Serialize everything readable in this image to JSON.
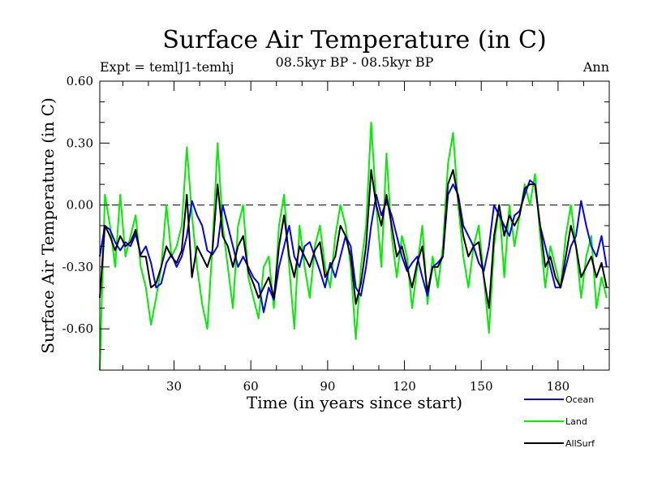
{
  "chart_data": {
    "type": "line",
    "title": "Surface Air Temperature (in C)",
    "subtitle_left": "Expt = temlJ1-temhj",
    "subtitle_center": "08.5kyr BP - 08.5kyr BP",
    "subtitle_right": "Ann",
    "xlabel": "Time (in years since start)",
    "ylabel": "Surface Air Temperature (in C)",
    "xlim": [
      1,
      200
    ],
    "ylim": [
      -0.8,
      0.6
    ],
    "x_ticks": [
      30,
      60,
      90,
      120,
      150,
      180
    ],
    "x_tick_labels": [
      "30",
      "60",
      "90",
      "120",
      "150",
      "180"
    ],
    "y_ticks": [
      0.6,
      0.3,
      0.0,
      -0.3,
      -0.6
    ],
    "y_tick_labels": [
      "0.60",
      "0.30",
      "0.00",
      "-0.30",
      "-0.60"
    ],
    "reference_line": 0.0,
    "legend_position": "bottom-right",
    "series": [
      {
        "name": "Ocean",
        "color": "#0000ff",
        "x_start": 1,
        "x_step": 2,
        "values": [
          -0.25,
          -0.1,
          -0.12,
          -0.18,
          -0.22,
          -0.18,
          -0.2,
          -0.14,
          -0.24,
          -0.2,
          -0.28,
          -0.4,
          -0.38,
          -0.28,
          -0.24,
          -0.3,
          -0.25,
          -0.15,
          0.02,
          -0.05,
          -0.1,
          -0.22,
          -0.24,
          -0.2,
          0.0,
          -0.1,
          -0.2,
          -0.3,
          -0.25,
          -0.3,
          -0.35,
          -0.38,
          -0.52,
          -0.4,
          -0.46,
          -0.3,
          -0.2,
          -0.1,
          -0.25,
          -0.3,
          -0.2,
          -0.18,
          -0.25,
          -0.32,
          -0.4,
          -0.28,
          -0.35,
          -0.25,
          -0.15,
          -0.2,
          -0.4,
          -0.44,
          -0.3,
          -0.1,
          0.05,
          -0.05,
          0.02,
          -0.05,
          -0.15,
          -0.25,
          -0.32,
          -0.28,
          -0.25,
          -0.35,
          -0.44,
          -0.3,
          -0.28,
          -0.25,
          0.05,
          0.1,
          0.05,
          -0.1,
          -0.15,
          -0.2,
          -0.28,
          -0.32,
          -0.2,
          0.0,
          -0.05,
          -0.1,
          -0.15,
          -0.05,
          -0.03,
          0.05,
          0.12,
          0.1,
          -0.1,
          -0.2,
          -0.3,
          -0.4,
          -0.4,
          -0.3,
          -0.2,
          -0.15,
          0.02,
          -0.1,
          -0.2,
          -0.25,
          -0.15,
          -0.3
        ]
      },
      {
        "name": "Land",
        "color": "#00ee00",
        "x_start": 1,
        "x_step": 2,
        "values": [
          -0.8,
          0.05,
          -0.1,
          -0.3,
          0.05,
          -0.25,
          -0.15,
          -0.05,
          -0.3,
          -0.4,
          -0.58,
          -0.45,
          -0.3,
          0.0,
          -0.25,
          -0.2,
          -0.1,
          0.28,
          -0.05,
          -0.3,
          -0.48,
          -0.6,
          -0.2,
          0.3,
          -0.1,
          -0.3,
          -0.5,
          -0.1,
          0.0,
          -0.35,
          -0.45,
          -0.55,
          -0.3,
          -0.25,
          -0.5,
          -0.1,
          0.05,
          -0.3,
          -0.6,
          -0.1,
          -0.3,
          -0.45,
          -0.2,
          -0.1,
          -0.3,
          -0.4,
          -0.15,
          0.0,
          -0.1,
          -0.3,
          -0.65,
          -0.3,
          -0.1,
          0.4,
          0.0,
          -0.3,
          0.25,
          -0.15,
          -0.35,
          -0.15,
          -0.25,
          -0.5,
          -0.3,
          -0.1,
          -0.48,
          -0.25,
          -0.4,
          -0.2,
          0.2,
          0.35,
          0.0,
          -0.25,
          -0.4,
          -0.2,
          -0.1,
          -0.35,
          -0.62,
          -0.2,
          0.0,
          -0.35,
          0.0,
          -0.2,
          -0.05,
          0.1,
          0.0,
          0.15,
          -0.15,
          -0.4,
          -0.2,
          -0.3,
          -0.4,
          -0.15,
          0.0,
          -0.2,
          -0.45,
          -0.25,
          -0.15,
          -0.5,
          -0.35,
          -0.45
        ]
      },
      {
        "name": "AllSurf",
        "color": "#000000",
        "x_start": 1,
        "x_step": 2,
        "values": [
          -0.45,
          -0.1,
          -0.15,
          -0.22,
          -0.15,
          -0.2,
          -0.18,
          -0.12,
          -0.25,
          -0.25,
          -0.4,
          -0.38,
          -0.3,
          -0.2,
          -0.25,
          -0.28,
          -0.22,
          0.05,
          -0.35,
          -0.2,
          -0.25,
          -0.3,
          -0.22,
          0.1,
          -0.15,
          -0.2,
          -0.3,
          -0.2,
          -0.15,
          -0.32,
          -0.38,
          -0.45,
          -0.4,
          -0.35,
          -0.45,
          -0.2,
          -0.05,
          -0.25,
          -0.35,
          -0.2,
          -0.25,
          -0.3,
          -0.22,
          -0.18,
          -0.35,
          -0.3,
          -0.25,
          -0.1,
          -0.15,
          -0.25,
          -0.48,
          -0.38,
          -0.2,
          0.17,
          0.0,
          -0.1,
          0.05,
          -0.1,
          -0.25,
          -0.2,
          -0.3,
          -0.4,
          -0.28,
          -0.2,
          -0.42,
          -0.3,
          -0.3,
          -0.25,
          0.1,
          0.17,
          0.03,
          -0.15,
          -0.25,
          -0.2,
          -0.18,
          -0.35,
          -0.5,
          -0.15,
          0.0,
          -0.15,
          -0.05,
          -0.1,
          -0.05,
          0.08,
          0.1,
          0.1,
          -0.1,
          -0.3,
          -0.25,
          -0.35,
          -0.4,
          -0.25,
          -0.1,
          -0.2,
          -0.35,
          -0.3,
          -0.25,
          -0.35,
          -0.28,
          -0.4
        ]
      }
    ]
  }
}
